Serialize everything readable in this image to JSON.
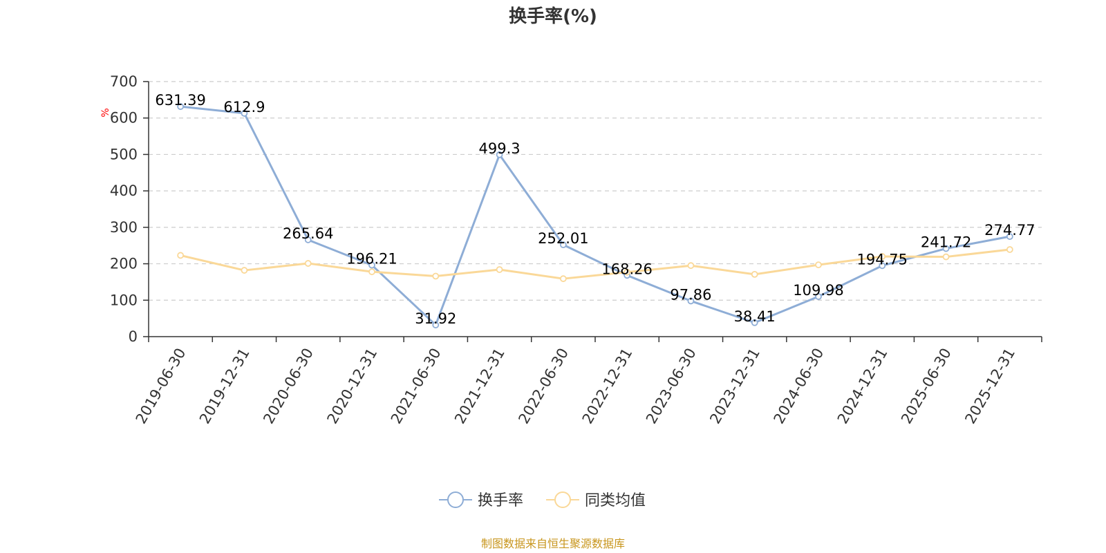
{
  "chart_data": {
    "type": "line",
    "title": "换手率(%)",
    "ylabel": "%",
    "ylim": [
      0,
      700
    ],
    "yticks": [
      0,
      100,
      200,
      300,
      400,
      500,
      600,
      700
    ],
    "grid": true,
    "legend_position": "bottom-center",
    "categories": [
      "2019-06-30",
      "2019-12-31",
      "2020-06-30",
      "2020-12-31",
      "2021-06-30",
      "2021-12-31",
      "2022-06-30",
      "2022-12-31",
      "2023-06-30",
      "2023-12-31",
      "2024-06-30",
      "2024-12-31",
      "2025-06-30",
      "2025-12-31"
    ],
    "series": [
      {
        "name": "换手率",
        "color": "#8eadd6",
        "values": [
          631.39,
          612.9,
          265.64,
          196.21,
          31.92,
          499.3,
          252.01,
          168.26,
          97.86,
          38.41,
          109.98,
          194.75,
          241.72,
          274.77
        ],
        "labels": [
          "631.39",
          "612.9",
          "265.64",
          "196.21",
          "31.92",
          "499.3",
          "252.01",
          "168.26",
          "97.86",
          "38.41",
          "109.98",
          "194.75",
          "241.72",
          "274.77"
        ]
      },
      {
        "name": "同类均值",
        "color": "#fad898",
        "values": [
          223,
          182,
          201,
          178,
          166,
          184,
          159,
          177,
          195,
          171,
          197,
          220,
          219,
          239
        ]
      }
    ]
  },
  "footer": {
    "source": "制图数据来自恒生聚源数据库"
  }
}
